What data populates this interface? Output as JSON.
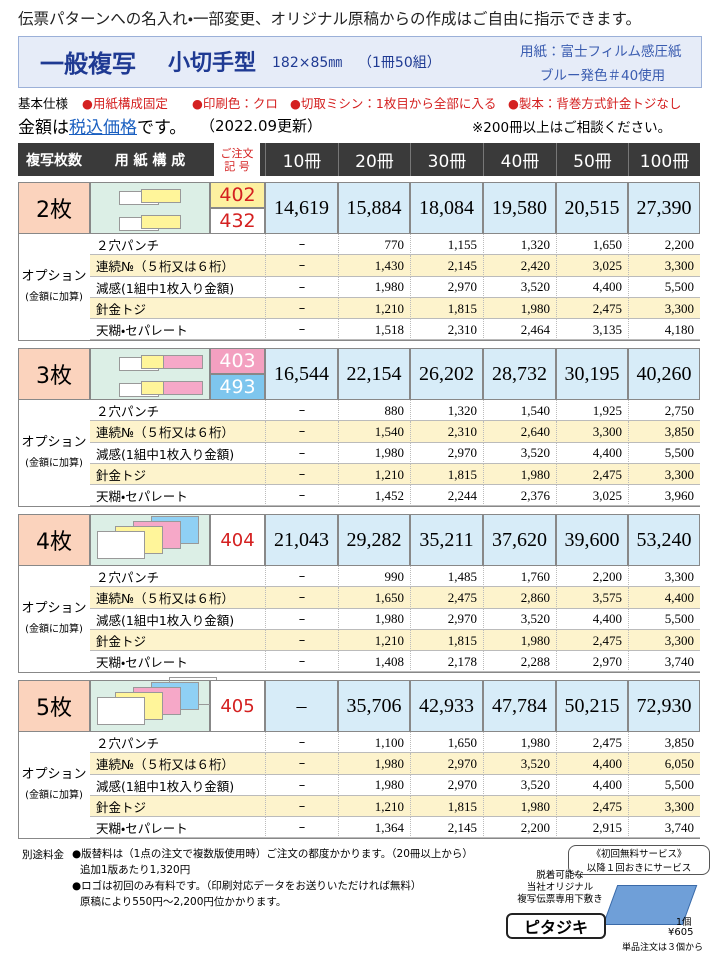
{
  "header": {
    "top_line": "伝票パターンへの名入れ・一部変更、オリジナル原稿からの作成はご自由に指示できます。",
    "title": "一般複写",
    "subtitle": "小切手型",
    "size": "182×85㎜",
    "unit": "（1冊50組）",
    "paper": [
      "用紙：富士フィルム感圧紙",
      "ブルー発色＃40使用"
    ]
  },
  "spec": {
    "label": "基本仕様",
    "items": [
      "●用紙構成固定",
      "●印刷色：クロ",
      "●切取ミシン：1枚目から全部に入る",
      "●製本：背巻方式針金トジなし"
    ]
  },
  "price_note": {
    "before": "金額は",
    "highlight": "税込価格",
    "after": "です。",
    "updated": "（2022.09更新）",
    "consult": "※200冊以上はご相談ください。"
  },
  "table": {
    "headers": {
      "copies": "複写枚数",
      "layout": "用 紙 構 成",
      "code": [
        "ご注文",
        "記 号"
      ],
      "volumes": [
        "10冊",
        "20冊",
        "30冊",
        "40冊",
        "50冊",
        "100冊"
      ]
    },
    "sections": [
      {
        "name": "2枚",
        "codes": [
          "402",
          "432"
        ],
        "prices": [
          "14,619",
          "15,884",
          "18,084",
          "19,580",
          "20,515",
          "27,390"
        ],
        "option_group": "オプション",
        "option_note": "(金額に加算)",
        "options": [
          {
            "label": "２穴パンチ",
            "values": [
              "–",
              "770",
              "1,155",
              "1,320",
              "1,650",
              "2,200"
            ]
          },
          {
            "label": "連続№（５桁又は６桁）",
            "values": [
              "–",
              "1,430",
              "2,145",
              "2,420",
              "3,025",
              "3,300"
            ]
          },
          {
            "label": "減感(1組中1枚入り金額)",
            "values": [
              "–",
              "1,980",
              "2,970",
              "3,520",
              "4,400",
              "5,500"
            ]
          },
          {
            "label": "針金トジ",
            "values": [
              "–",
              "1,210",
              "1,815",
              "1,980",
              "2,475",
              "3,300"
            ]
          },
          {
            "label": "天糊・セパレート",
            "values": [
              "–",
              "1,518",
              "2,310",
              "2,464",
              "3,135",
              "4,180"
            ]
          }
        ]
      },
      {
        "name": "3枚",
        "codes": [
          "403",
          "493"
        ],
        "prices": [
          "16,544",
          "22,154",
          "26,202",
          "28,732",
          "30,195",
          "40,260"
        ],
        "option_group": "オプション",
        "option_note": "(金額に加算)",
        "options": [
          {
            "label": "２穴パンチ",
            "values": [
              "–",
              "880",
              "1,320",
              "1,540",
              "1,925",
              "2,750"
            ]
          },
          {
            "label": "連続№（５桁又は６桁）",
            "values": [
              "–",
              "1,540",
              "2,310",
              "2,640",
              "3,300",
              "3,850"
            ]
          },
          {
            "label": "減感(1組中1枚入り金額)",
            "values": [
              "–",
              "1,980",
              "2,970",
              "3,520",
              "4,400",
              "5,500"
            ]
          },
          {
            "label": "針金トジ",
            "values": [
              "–",
              "1,210",
              "1,815",
              "1,980",
              "2,475",
              "3,300"
            ]
          },
          {
            "label": "天糊・セパレート",
            "values": [
              "–",
              "1,452",
              "2,244",
              "2,376",
              "3,025",
              "3,960"
            ]
          }
        ]
      },
      {
        "name": "4枚",
        "codes": [
          "404"
        ],
        "prices": [
          "21,043",
          "29,282",
          "35,211",
          "37,620",
          "39,600",
          "53,240"
        ],
        "option_group": "オプション",
        "option_note": "(金額に加算)",
        "options": [
          {
            "label": "２穴パンチ",
            "values": [
              "–",
              "990",
              "1,485",
              "1,760",
              "2,200",
              "3,300"
            ]
          },
          {
            "label": "連続№（５桁又は６桁）",
            "values": [
              "–",
              "1,650",
              "2,475",
              "2,860",
              "3,575",
              "4,400"
            ]
          },
          {
            "label": "減感(1組中1枚入り金額)",
            "values": [
              "–",
              "1,980",
              "2,970",
              "3,520",
              "4,400",
              "5,500"
            ]
          },
          {
            "label": "針金トジ",
            "values": [
              "–",
              "1,210",
              "1,815",
              "1,980",
              "2,475",
              "3,300"
            ]
          },
          {
            "label": "天糊・セパレート",
            "values": [
              "–",
              "1,408",
              "2,178",
              "2,288",
              "2,970",
              "3,740"
            ]
          }
        ]
      },
      {
        "name": "5枚",
        "codes": [
          "405"
        ],
        "prices": [
          "–",
          "35,706",
          "42,933",
          "47,784",
          "50,215",
          "72,930"
        ],
        "option_group": "オプション",
        "option_note": "(金額に加算)",
        "options": [
          {
            "label": "２穴パンチ",
            "values": [
              "–",
              "1,100",
              "1,650",
              "1,980",
              "2,475",
              "3,850"
            ]
          },
          {
            "label": "連続№（５桁又は６桁）",
            "values": [
              "–",
              "1,980",
              "2,970",
              "3,520",
              "4,400",
              "6,050"
            ]
          },
          {
            "label": "減感(1組中1枚入り金額)",
            "values": [
              "–",
              "1,980",
              "2,970",
              "3,520",
              "4,400",
              "5,500"
            ]
          },
          {
            "label": "針金トジ",
            "values": [
              "–",
              "1,210",
              "1,815",
              "1,980",
              "2,475",
              "3,300"
            ]
          },
          {
            "label": "天糊・セパレート",
            "values": [
              "–",
              "1,364",
              "2,145",
              "2,200",
              "2,915",
              "3,740"
            ]
          }
        ]
      }
    ]
  },
  "footer": {
    "label": "別途料金",
    "lines": [
      "●版替料は（1点の注文で複数版使用時）ご注文の都度かかります。（20冊以上から）",
      "追加1版あたり1,320円",
      "●ロゴは初回のみ有料です。（印刷対応データをお送りいただければ無料）",
      "原稿により550円〜2,200円位かかります。"
    ]
  },
  "ad": {
    "service": "《初回無料サービス》",
    "service_sub": "以降１回おきにサービス",
    "desc": [
      "脱着可能な",
      "当社オリジナル",
      "複写伝票専用下敷き"
    ],
    "name": "ピタジキ",
    "qty": "1個",
    "price": "¥605",
    "min_order": "単品注文は３個から"
  }
}
